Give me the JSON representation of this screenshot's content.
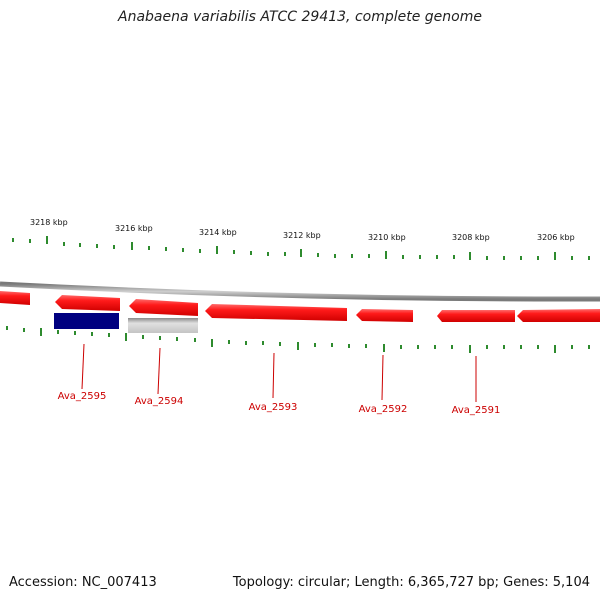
{
  "title": "Anabaena variabilis ATCC 29413, complete genome",
  "footer": {
    "accession": "Accession: NC_007413",
    "topology": "Topology: circular; Length: 6,365,727 bp; Genes: 5,104"
  },
  "scale": {
    "labels": [
      "3218 kbp",
      "3216 kbp",
      "3214 kbp",
      "3212 kbp",
      "3210 kbp",
      "3208 kbp",
      "3206 kbp"
    ]
  },
  "genes": [
    "Ava_2595",
    "Ava_2594",
    "Ava_2593",
    "Ava_2592",
    "Ava_2591"
  ],
  "colors": {
    "forward_gene": "#ff0000",
    "cds_blue": "#000080",
    "cds_gray": "#b0b0b0",
    "backbone": "#888888",
    "tick": "#2e8b2e",
    "gene_label": "#cc0000"
  }
}
